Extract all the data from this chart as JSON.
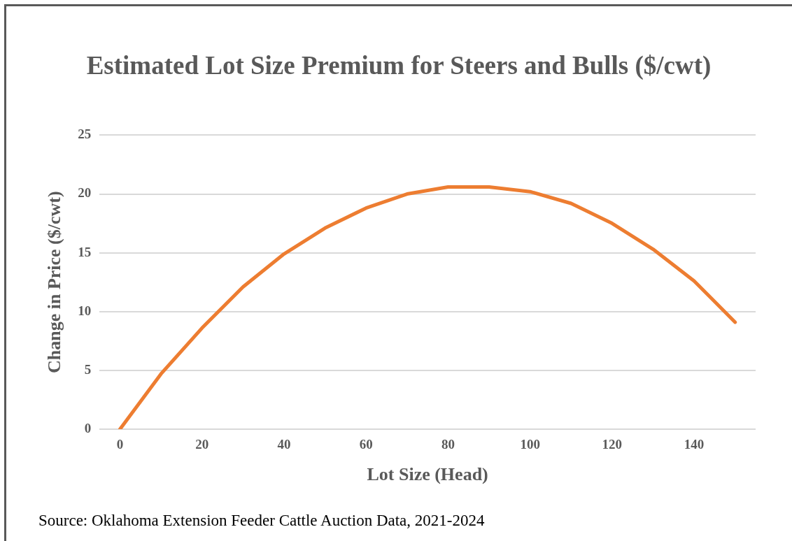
{
  "chart_data": {
    "type": "line",
    "title": "Estimated Lot Size Premium for Steers and Bulls ($/cwt)",
    "xlabel": "Lot Size (Head)",
    "ylabel": "Change in Price ($/cwt)",
    "x": [
      0,
      10,
      20,
      30,
      40,
      50,
      60,
      70,
      80,
      90,
      100,
      110,
      120,
      130,
      140,
      150
    ],
    "series": [
      {
        "color": "#ed7d31",
        "values": [
          0,
          4.7,
          8.6,
          12.1,
          14.9,
          17.1,
          18.8,
          20.0,
          20.6,
          20.6,
          20.2,
          19.2,
          17.5,
          15.3,
          12.6,
          9.1
        ]
      }
    ],
    "xlim": [
      -5,
      155
    ],
    "xticks": [
      0,
      20,
      40,
      60,
      80,
      100,
      120,
      140
    ],
    "ylim": [
      0,
      25
    ],
    "yticks": [
      0,
      5,
      10,
      15,
      20,
      25
    ],
    "grid": "y",
    "legend": false,
    "marker": "none",
    "line_style": "solid",
    "annotations": [
      "Source: Oklahoma Extension Feeder Cattle Auction Data, 2021-2024"
    ]
  }
}
